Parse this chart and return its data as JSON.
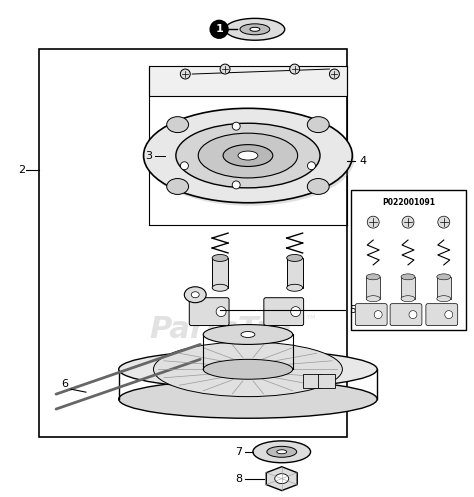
{
  "bg_color": "#ffffff",
  "border_color": "#000000",
  "text_color": "#000000",
  "inset_label": "P022001091",
  "figsize": [
    4.74,
    4.97
  ],
  "dpi": 100
}
